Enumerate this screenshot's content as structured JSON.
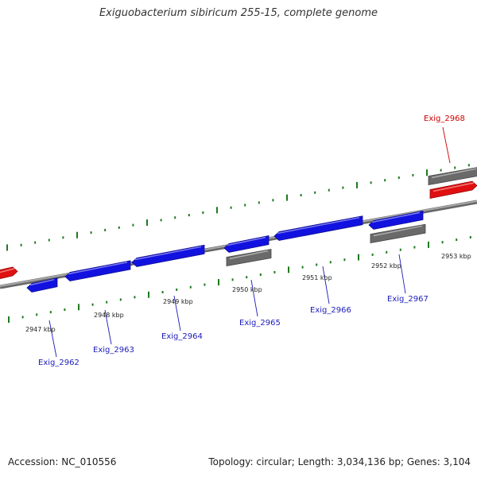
{
  "title": "Exiguobacterium sibiricum 255-15, complete genome",
  "footer": {
    "accession": "Accession: NC_010556",
    "stats": "Topology: circular; Length: 3,034,136 bp; Genes: 3,104"
  },
  "colors": {
    "backbone": "#8a8a8a",
    "tick": "#1f7a1f",
    "gene_forward": "#1212e0",
    "gene_other": "#e01010",
    "gene_pseudo": "#6a6a6a",
    "label_blue": "#1b1bbb",
    "label_red": "#cc0000"
  },
  "tick_labels": [
    "2947 kbp",
    "2948 kbp",
    "2949 kbp",
    "2950 kbp",
    "2951 kbp",
    "2952 kbp",
    "2953 kbp"
  ],
  "gene_labels": [
    "Exig_2962",
    "Exig_2963",
    "Exig_2964",
    "Exig_2965",
    "Exig_2966",
    "Exig_2967",
    "Exig_2968"
  ]
}
